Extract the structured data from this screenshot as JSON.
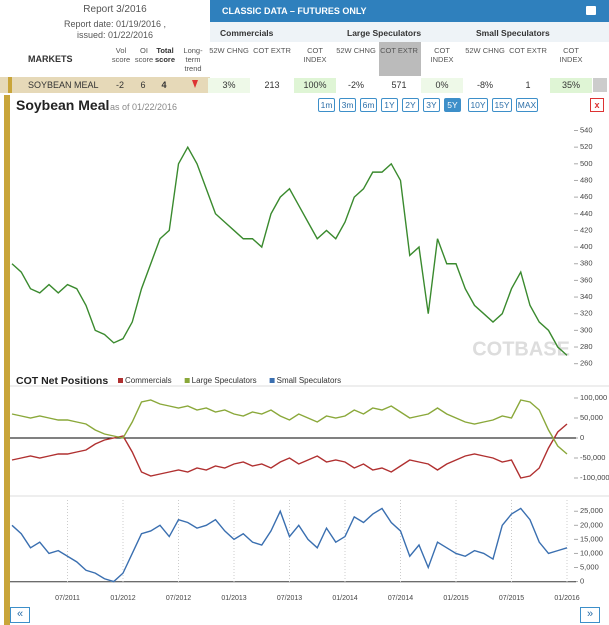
{
  "header": {
    "report": "Report 3/2016",
    "report_date": "Report date: 01/19/2016 ,",
    "issued": "issued: 01/22/2016",
    "banner": "CLASSIC DATA – FUTURES ONLY"
  },
  "table": {
    "groups": [
      "Commercials",
      "Large Speculators",
      "Small Speculators"
    ],
    "columns": [
      "MARKETS",
      "Vol score",
      "OI score",
      "Total score",
      "Long-term trend"
    ],
    "sub_columns": [
      "52W CHNG",
      "COT EXTR",
      "COT INDEX",
      "52W CHNG",
      "COT EXTR",
      "COT INDEX",
      "52W CHNG",
      "COT EXTR",
      "COT INDEX"
    ],
    "rows": [
      [
        "SOYBEAN MEAL",
        "-2",
        "6",
        "4",
        "3%",
        "213",
        "100%",
        "-2%",
        "571",
        "0%",
        "-8%",
        "1",
        "35%"
      ]
    ]
  },
  "ranges": [
    "1m",
    "3m",
    "6m",
    "1Y",
    "2Y",
    "3Y",
    "5Y",
    "10Y",
    "15Y",
    "MAX"
  ],
  "active_range": 6,
  "nav": [
    "«",
    "»"
  ],
  "chart_data": [
    {
      "type": "line",
      "title": "Soybean Meal",
      "subtitle": "as of 01/22/2016",
      "watermark": "COTBASE",
      "color": "#3a8a2e",
      "values": [
        380,
        370,
        350,
        345,
        355,
        345,
        355,
        350,
        330,
        300,
        295,
        285,
        290,
        310,
        350,
        380,
        410,
        420,
        500,
        520,
        500,
        470,
        440,
        430,
        420,
        410,
        410,
        400,
        440,
        460,
        470,
        450,
        430,
        410,
        420,
        410,
        430,
        460,
        470,
        490,
        490,
        500,
        480,
        390,
        400,
        320,
        410,
        380,
        380,
        350,
        330,
        320,
        310,
        320,
        350,
        370,
        330,
        310,
        300,
        280,
        270
      ],
      "ylim": [
        250,
        555
      ],
      "yticks": [
        260,
        280,
        300,
        320,
        340,
        360,
        380,
        400,
        420,
        440,
        460,
        480,
        500,
        520,
        540
      ]
    },
    {
      "type": "line",
      "title": "COT Net Positions",
      "series": [
        {
          "name": "Commercials",
          "color": "#b03030",
          "values": [
            -55000,
            -50000,
            -45000,
            -50000,
            -45000,
            -40000,
            -40000,
            -35000,
            -30000,
            -15000,
            -5000,
            0,
            5000,
            -35000,
            -85000,
            -95000,
            -90000,
            -85000,
            -80000,
            -85000,
            -75000,
            -80000,
            -70000,
            -75000,
            -65000,
            -60000,
            -70000,
            -65000,
            -75000,
            -60000,
            -50000,
            -65000,
            -55000,
            -45000,
            -60000,
            -55000,
            -60000,
            -75000,
            -65000,
            -80000,
            -75000,
            -85000,
            -70000,
            -55000,
            -60000,
            -65000,
            -80000,
            -65000,
            -55000,
            -45000,
            -40000,
            -45000,
            -50000,
            -60000,
            -55000,
            -100000,
            -95000,
            -75000,
            -25000,
            15000,
            35000
          ]
        },
        {
          "name": "Large Speculators",
          "color": "#8aa83a",
          "values": [
            60000,
            55000,
            50000,
            55000,
            50000,
            45000,
            45000,
            40000,
            35000,
            20000,
            10000,
            5000,
            0,
            40000,
            90000,
            95000,
            85000,
            80000,
            75000,
            80000,
            70000,
            75000,
            65000,
            70000,
            60000,
            55000,
            65000,
            60000,
            70000,
            55000,
            45000,
            60000,
            50000,
            40000,
            55000,
            50000,
            55000,
            70000,
            60000,
            75000,
            70000,
            80000,
            65000,
            50000,
            55000,
            60000,
            75000,
            60000,
            50000,
            40000,
            35000,
            40000,
            45000,
            55000,
            50000,
            95000,
            90000,
            70000,
            20000,
            -20000,
            -40000
          ]
        }
      ],
      "ylim": [
        -135000,
        120000
      ],
      "yticks": [
        {
          "value": 100000,
          "label": "100,000"
        },
        {
          "value": 50000,
          "label": "50,000"
        },
        0,
        {
          "value": -50000,
          "label": "-50,000"
        },
        {
          "value": -100000,
          "label": "-100,000"
        }
      ]
    },
    {
      "type": "line",
      "series": [
        {
          "name": "Small Speculators",
          "color": "#3a6fb0",
          "values": [
            20000,
            17000,
            12000,
            14000,
            10000,
            11000,
            9000,
            7000,
            4000,
            3000,
            1000,
            0,
            3000,
            10000,
            17000,
            18000,
            20000,
            16000,
            22000,
            21000,
            19000,
            20000,
            22000,
            18000,
            15000,
            17000,
            14000,
            13000,
            18000,
            25000,
            16000,
            20000,
            15000,
            12000,
            19000,
            14000,
            16000,
            23000,
            21000,
            24000,
            26000,
            21000,
            18000,
            9000,
            13000,
            5000,
            14000,
            12000,
            10000,
            9000,
            11000,
            10000,
            8000,
            20000,
            24000,
            26000,
            22000,
            14000,
            10000,
            11000,
            12000
          ]
        }
      ],
      "categories": [
        null,
        null,
        null,
        null,
        null,
        null,
        "07/2011",
        null,
        null,
        null,
        null,
        null,
        "01/2012",
        null,
        null,
        null,
        null,
        null,
        "07/2012",
        null,
        null,
        null,
        null,
        null,
        "01/2013",
        null,
        null,
        null,
        null,
        null,
        "07/2013",
        null,
        null,
        null,
        null,
        null,
        "01/2014",
        null,
        null,
        null,
        null,
        null,
        "07/2014",
        null,
        null,
        null,
        null,
        null,
        "01/2015",
        null,
        null,
        null,
        null,
        null,
        "07/2015",
        null,
        null,
        null,
        null,
        null,
        "01/2016"
      ],
      "ylim": [
        -3000,
        29000
      ],
      "yticks": [
        0,
        {
          "value": 5000,
          "label": "5,000"
        },
        {
          "value": 10000,
          "label": "10,000"
        },
        {
          "value": 15000,
          "label": "15,000"
        },
        {
          "value": 20000,
          "label": "20,000"
        },
        {
          "value": 25000,
          "label": "25,000"
        }
      ]
    }
  ]
}
